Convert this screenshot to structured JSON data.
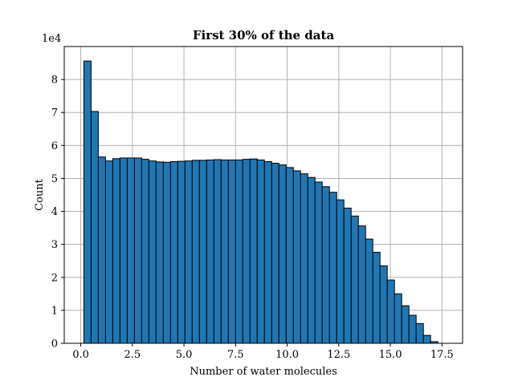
{
  "chart_data": {
    "type": "bar",
    "title": "First 30% of the data",
    "xlabel": "Number of water molecules",
    "ylabel": "Count",
    "y_multiplier_label": "1e4",
    "xlim": [
      -0.8,
      18.5
    ],
    "ylim": [
      0,
      9.0
    ],
    "bin_width": 0.35,
    "bin_start": 0.15,
    "x_ticks": [
      {
        "value": 0.0,
        "label": "0.0"
      },
      {
        "value": 2.5,
        "label": "2.5"
      },
      {
        "value": 5.0,
        "label": "5.0"
      },
      {
        "value": 7.5,
        "label": "7.5"
      },
      {
        "value": 10.0,
        "label": "10.0"
      },
      {
        "value": 12.5,
        "label": "12.5"
      },
      {
        "value": 15.0,
        "label": "15.0"
      },
      {
        "value": 17.5,
        "label": "17.5"
      }
    ],
    "y_ticks": [
      {
        "value": 0,
        "label": "0"
      },
      {
        "value": 1,
        "label": "1"
      },
      {
        "value": 2,
        "label": "2"
      },
      {
        "value": 3,
        "label": "3"
      },
      {
        "value": 4,
        "label": "4"
      },
      {
        "value": 5,
        "label": "5"
      },
      {
        "value": 6,
        "label": "6"
      },
      {
        "value": 7,
        "label": "7"
      },
      {
        "value": 8,
        "label": "8"
      }
    ],
    "values": [
      8.56,
      7.03,
      5.65,
      5.53,
      5.6,
      5.62,
      5.62,
      5.62,
      5.58,
      5.53,
      5.5,
      5.49,
      5.51,
      5.52,
      5.53,
      5.55,
      5.55,
      5.56,
      5.57,
      5.56,
      5.56,
      5.56,
      5.58,
      5.59,
      5.56,
      5.51,
      5.46,
      5.41,
      5.33,
      5.23,
      5.14,
      5.03,
      4.89,
      4.75,
      4.58,
      4.35,
      4.1,
      3.86,
      3.56,
      3.16,
      2.76,
      2.35,
      1.92,
      1.5,
      1.14,
      0.85,
      0.6,
      0.24,
      0.05
    ],
    "grid": true,
    "bar_color": "#1f77b4",
    "edge_color": "#000000"
  }
}
